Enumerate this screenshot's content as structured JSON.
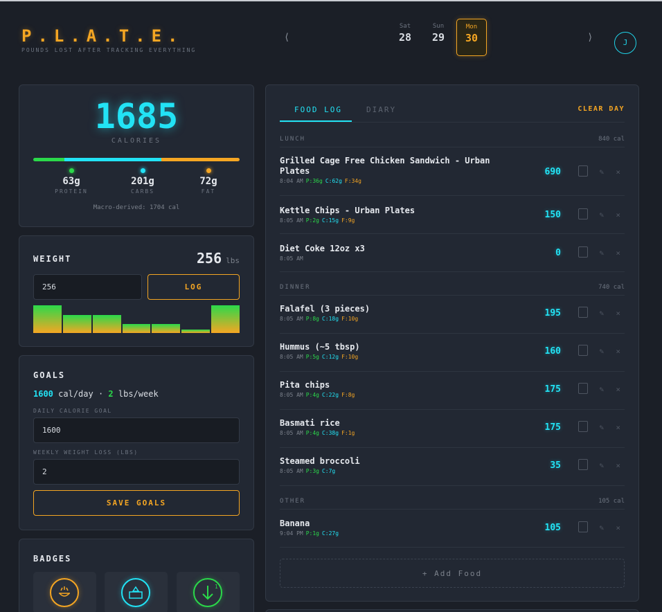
{
  "brand": {
    "title": "P.L.A.T.E.",
    "subtitle": "POUNDS LOST AFTER TRACKING EVERYTHING"
  },
  "dates": {
    "prev": "⟨",
    "next": "⟩",
    "days": [
      {
        "name": "Sat",
        "num": "28"
      },
      {
        "name": "Sun",
        "num": "29"
      },
      {
        "name": "Mon",
        "num": "30"
      }
    ]
  },
  "user": {
    "initial": "J"
  },
  "calories": {
    "value": "1685",
    "label": "CALORIES",
    "protein": {
      "value": "63g",
      "label": "PROTEIN"
    },
    "carbs": {
      "value": "201g",
      "label": "CARBS"
    },
    "fat": {
      "value": "72g",
      "label": "FAT"
    },
    "note": "Macro-derived: 1704 cal",
    "bar_split": [
      0.15,
      0.47,
      0.38
    ]
  },
  "weight": {
    "title": "WEIGHT",
    "current": "256",
    "unit": "lbs",
    "input_value": "256",
    "log_label": "LOG",
    "history_levels": [
      0.95,
      0.62,
      0.62,
      0.3,
      0.3,
      0.12,
      0.95
    ]
  },
  "goals": {
    "title": "GOALS",
    "cal_per_day": "1600",
    "cal_suffix": "cal/day ·",
    "lbs_per_week": "2",
    "lbs_suffix": "lbs/week",
    "daily_label": "DAILY CALORIE GOAL",
    "daily_value": "1600",
    "weekly_label": "WEEKLY WEIGHT LOSS (LBS)",
    "weekly_value": "2",
    "save_label": "SAVE GOALS"
  },
  "badges": {
    "title": "BADGES",
    "superscript": "1"
  },
  "log": {
    "tab_food": "FOOD LOG",
    "tab_diary": "DIARY",
    "clear": "CLEAR DAY",
    "meals": [
      {
        "name": "LUNCH",
        "cal": "840 cal",
        "items": [
          {
            "name": "Grilled Cage Free Chicken Sandwich - Urban Plates",
            "time": "8:04 AM",
            "p": "P:36g",
            "c": "C:62g",
            "f": "F:34g",
            "cal": "690"
          },
          {
            "name": "Kettle Chips - Urban Plates",
            "time": "8:05 AM",
            "p": "P:2g",
            "c": "C:15g",
            "f": "F:9g",
            "cal": "150"
          },
          {
            "name": "Diet Coke 12oz x3",
            "time": "8:05 AM",
            "p": "",
            "c": "",
            "f": "",
            "cal": "0"
          }
        ]
      },
      {
        "name": "DINNER",
        "cal": "740 cal",
        "items": [
          {
            "name": "Falafel (3 pieces)",
            "time": "8:05 AM",
            "p": "P:8g",
            "c": "C:18g",
            "f": "F:10g",
            "cal": "195"
          },
          {
            "name": "Hummus (~5 tbsp)",
            "time": "8:05 AM",
            "p": "P:5g",
            "c": "C:12g",
            "f": "F:10g",
            "cal": "160"
          },
          {
            "name": "Pita chips",
            "time": "8:05 AM",
            "p": "P:4g",
            "c": "C:22g",
            "f": "F:8g",
            "cal": "175"
          },
          {
            "name": "Basmati rice",
            "time": "8:05 AM",
            "p": "P:4g",
            "c": "C:38g",
            "f": "F:1g",
            "cal": "175"
          },
          {
            "name": "Steamed broccoli",
            "time": "8:05 AM",
            "p": "P:3g",
            "c": "C:7g",
            "f": "",
            "cal": "35"
          }
        ]
      },
      {
        "name": "OTHER",
        "cal": "105 cal",
        "items": [
          {
            "name": "Banana",
            "time": "9:04 PM",
            "p": "P:1g",
            "c": "C:27g",
            "f": "",
            "cal": "105"
          }
        ]
      }
    ],
    "add_label": "+ Add Food"
  },
  "colors": {
    "cyan": "#22e3f5",
    "orange": "#f5a623",
    "green": "#2bd94a"
  },
  "icons": [
    "copy-icon",
    "edit-icon",
    "delete-icon",
    "chef-badge-icon",
    "meal-badge-icon",
    "weight-down-badge-icon"
  ]
}
